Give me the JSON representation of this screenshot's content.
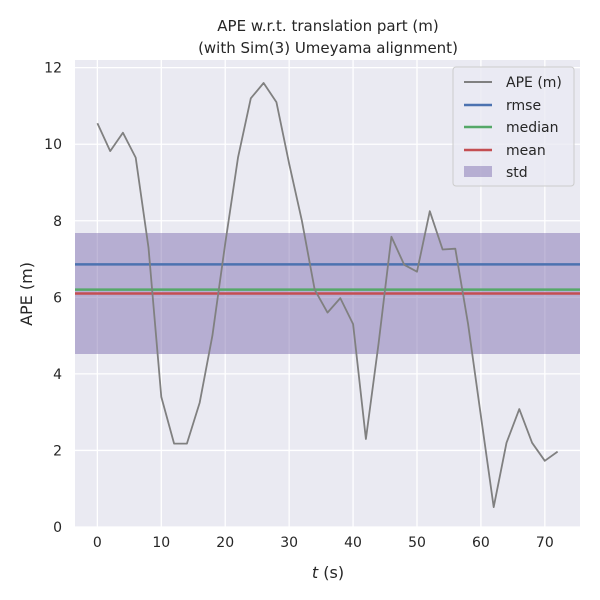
{
  "chart_data": {
    "type": "line",
    "title": "APE w.r.t. translation part (m)",
    "subtitle": "(with Sim(3) Umeyama alignment)",
    "xlabel_italic": "t",
    "xlabel_rest": " (s)",
    "ylabel": "APE (m)",
    "xlim": [
      -3.5,
      75.5
    ],
    "ylim": [
      0,
      12.2
    ],
    "xticks": [
      0,
      10,
      20,
      30,
      40,
      50,
      60,
      70
    ],
    "yticks": [
      0,
      2,
      4,
      6,
      8,
      10,
      12
    ],
    "grid": true,
    "legend_position": "top-right",
    "series": [
      {
        "name": "APE (m)",
        "color": "#808080",
        "x": [
          0,
          2,
          4,
          6,
          8,
          10,
          12,
          14,
          16,
          18,
          20,
          22,
          24,
          26,
          28,
          30,
          32,
          34,
          36,
          38,
          40,
          42,
          44,
          46,
          48,
          50,
          52,
          54,
          56,
          58,
          60,
          62,
          64,
          66,
          68,
          70,
          72
        ],
        "y": [
          10.55,
          9.82,
          10.3,
          9.65,
          7.3,
          3.4,
          2.18,
          2.18,
          3.25,
          5.0,
          7.4,
          9.65,
          11.2,
          11.6,
          11.1,
          9.5,
          8.0,
          6.2,
          5.6,
          5.98,
          5.3,
          2.3,
          4.8,
          7.58,
          6.85,
          6.67,
          8.25,
          7.25,
          7.27,
          5.3,
          2.9,
          0.52,
          2.2,
          3.08,
          2.2,
          1.73,
          1.97
        ]
      }
    ],
    "stats": {
      "rmse": {
        "label": "rmse",
        "value": 6.86,
        "color": "#4c72b0"
      },
      "median": {
        "label": "median",
        "value": 6.2,
        "color": "#55a868"
      },
      "mean": {
        "label": "mean",
        "value": 6.1,
        "color": "#c44e52"
      },
      "std": {
        "label": "std",
        "lower": 4.52,
        "upper": 7.68,
        "color": "#8172b2"
      }
    }
  }
}
